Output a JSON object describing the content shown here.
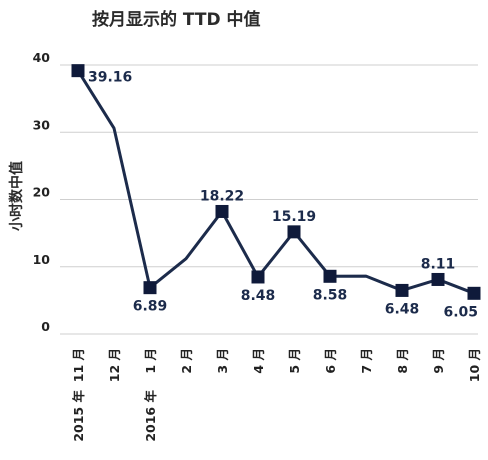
{
  "chart_data": {
    "type": "line",
    "title": "按月显示的 TTD 中值",
    "ylabel": "小时数中值",
    "xlabel": "",
    "ylim": [
      0,
      40
    ],
    "yticks": [
      0,
      10,
      20,
      30,
      40
    ],
    "grid": "horizontal",
    "categories": [
      "11 月",
      "12 月",
      "1 月",
      "2 月",
      "3 月",
      "4 月",
      "5 月",
      "6 月",
      "7 月",
      "8 月",
      "9 月",
      "10 月"
    ],
    "year_labels": [
      {
        "category_index": 0,
        "text": "2015 年"
      },
      {
        "category_index": 2,
        "text": "2016 年"
      }
    ],
    "series": [
      {
        "values": [
          39.16,
          30.6,
          6.89,
          11.2,
          18.22,
          8.48,
          15.19,
          8.58,
          8.6,
          6.48,
          8.11,
          6.05
        ],
        "markers": [
          true,
          false,
          true,
          false,
          true,
          true,
          true,
          true,
          false,
          true,
          true,
          true
        ],
        "labels": [
          "39.16",
          "",
          "6.89",
          "",
          "18.22",
          "8.48",
          "15.19",
          "8.58",
          "",
          "6.48",
          "8.11",
          "6.05"
        ],
        "label_positions": [
          "right",
          "",
          "below",
          "",
          "above",
          "below",
          "above",
          "below",
          "",
          "below",
          "above",
          "below"
        ]
      }
    ],
    "colors": {
      "line": "#1c2b4b",
      "marker": "#0f1a3a"
    }
  }
}
